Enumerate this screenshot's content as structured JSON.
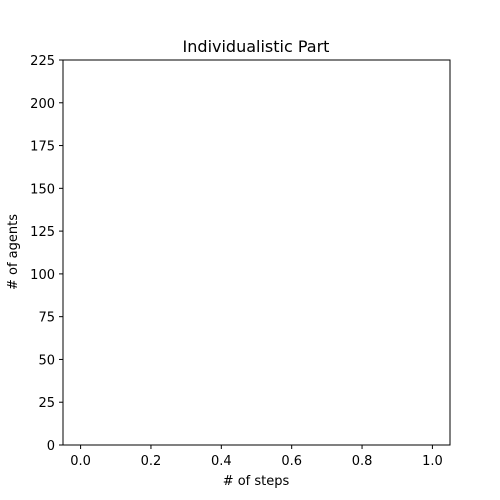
{
  "chart_data": {
    "type": "line",
    "title": "Individualistic Part",
    "xlabel": "# of steps",
    "ylabel": "# of agents",
    "xlim": [
      -0.05,
      1.05
    ],
    "ylim": [
      0,
      225
    ],
    "xticks": [
      0.0,
      0.2,
      0.4,
      0.6,
      0.8,
      1.0
    ],
    "xtick_labels": [
      "0.0",
      "0.2",
      "0.4",
      "0.6",
      "0.8",
      "1.0"
    ],
    "yticks": [
      0,
      25,
      50,
      75,
      100,
      125,
      150,
      175,
      200,
      225
    ],
    "ytick_labels": [
      "0",
      "25",
      "50",
      "75",
      "100",
      "125",
      "150",
      "175",
      "200",
      "225"
    ],
    "grid": false,
    "series": []
  }
}
